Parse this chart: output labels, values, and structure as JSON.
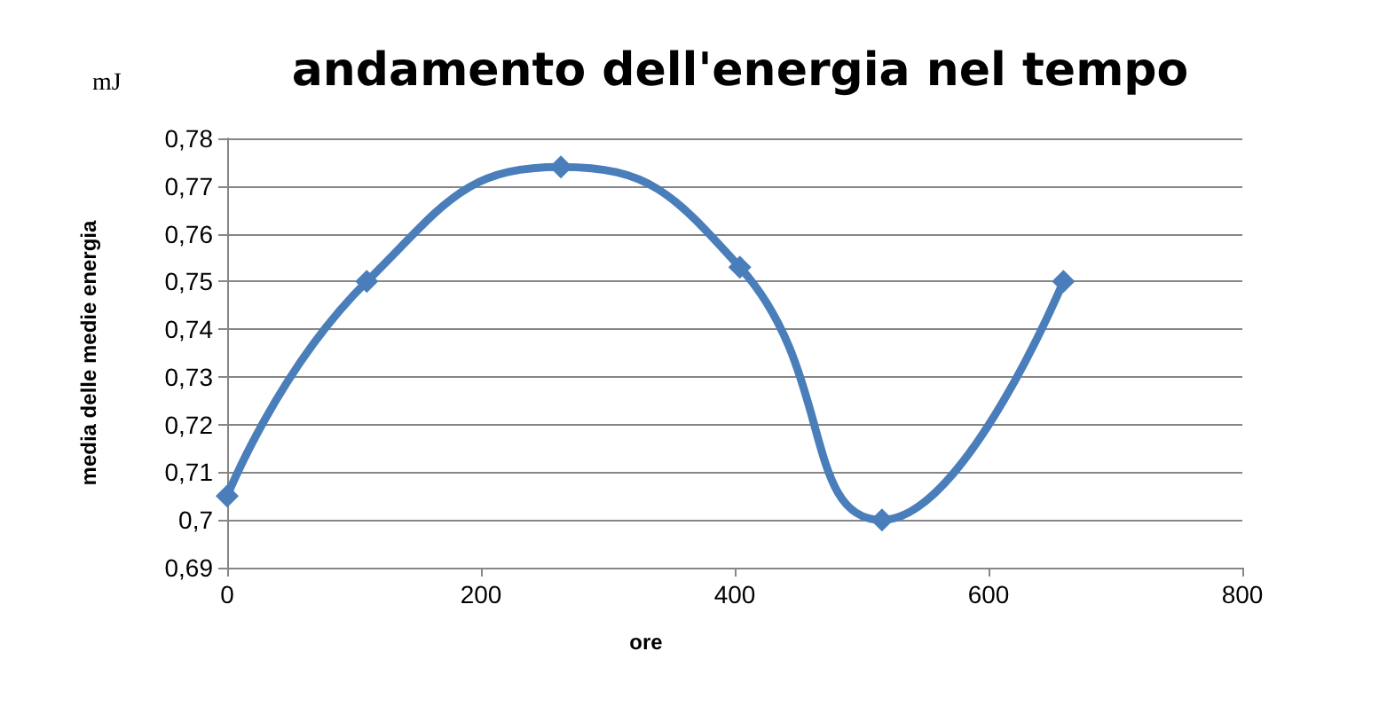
{
  "chart_data": {
    "type": "line",
    "title": "andamento dell'energia nel tempo",
    "xlabel": "ore",
    "ylabel": "media delle medie energia",
    "annotations": [
      "mJ"
    ],
    "x": [
      0,
      110,
      263,
      404,
      516,
      659
    ],
    "series": [
      {
        "color": "#4a7ebb",
        "values": [
          0.705,
          0.75,
          0.774,
          0.753,
          0.7,
          0.75
        ]
      }
    ],
    "xlim": [
      0,
      800
    ],
    "xticks": [
      0,
      200,
      400,
      600,
      800
    ],
    "ylim": [
      0.69,
      0.78
    ],
    "yticks": [
      {
        "value": 0.69,
        "label": "0,69"
      },
      {
        "value": 0.7,
        "label": "0,7"
      },
      {
        "value": 0.71,
        "label": "0,71"
      },
      {
        "value": 0.72,
        "label": "0,72"
      },
      {
        "value": 0.73,
        "label": "0,73"
      },
      {
        "value": 0.74,
        "label": "0,74"
      },
      {
        "value": 0.75,
        "label": "0,75"
      },
      {
        "value": 0.76,
        "label": "0,76"
      },
      {
        "value": 0.77,
        "label": "0,77"
      },
      {
        "value": 0.78,
        "label": "0,78"
      }
    ],
    "grid": "y",
    "marker": "diamond",
    "line_style": "solid"
  }
}
